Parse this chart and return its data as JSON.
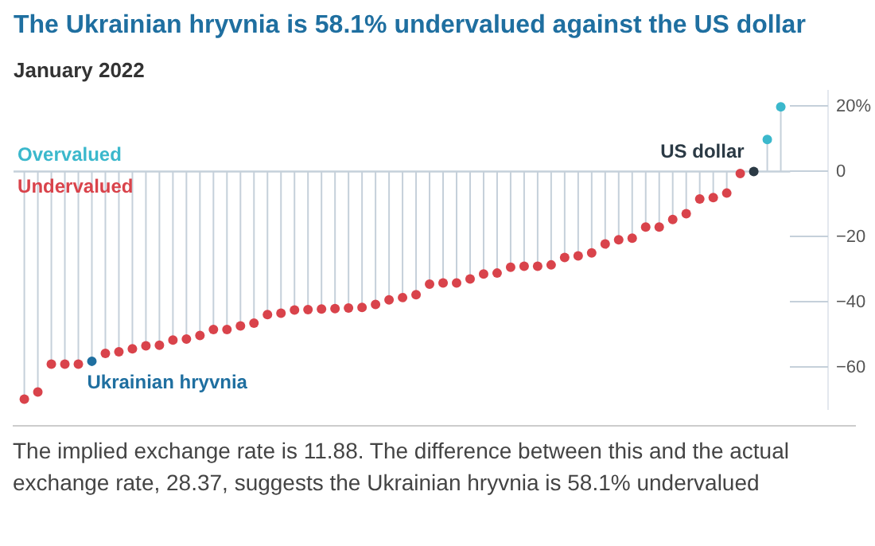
{
  "chart_data": {
    "type": "lollipop",
    "title": "The Ukrainian hryvnia is 58.1% undervalued against the US dollar",
    "subtitle": "January 2022",
    "categories": [
      null,
      null,
      null,
      null,
      null,
      null,
      null,
      null,
      null,
      null,
      null,
      null,
      null,
      null,
      null,
      null,
      null,
      null,
      null,
      null,
      null,
      null,
      null,
      null,
      null,
      null,
      null,
      null,
      null,
      null,
      null,
      null,
      null,
      null,
      null,
      null,
      null,
      null,
      null,
      null,
      null,
      null,
      null,
      null,
      null,
      null,
      null,
      null,
      null,
      null,
      null,
      null,
      null,
      null,
      null,
      null,
      null
    ],
    "values": [
      -69.7,
      -67.5,
      -59,
      -59,
      -59,
      -58.1,
      -55.7,
      -55.2,
      -54.3,
      -53.4,
      -53.2,
      -51.6,
      -51.3,
      -50.2,
      -48.4,
      -48.4,
      -47.3,
      -46.4,
      -43.8,
      -43.4,
      -42.4,
      -42.3,
      -42.1,
      -42,
      -41.8,
      -41.6,
      -40.7,
      -39.3,
      -38.6,
      -37.7,
      -34.5,
      -34.1,
      -34.1,
      -32.9,
      -31.4,
      -31.1,
      -29.3,
      -29,
      -29,
      -28.6,
      -26.3,
      -25.8,
      -24.9,
      -22.2,
      -20.9,
      -20.4,
      -17,
      -17,
      -14.7,
      -12.9,
      -8.4,
      -8,
      -6.6,
      -0.6,
      0,
      9.8,
      19.8
    ],
    "colors": [
      "#d9434b",
      "#d9434b",
      "#d9434b",
      "#d9434b",
      "#d9434b",
      "#1f6fa0",
      "#d9434b",
      "#d9434b",
      "#d9434b",
      "#d9434b",
      "#d9434b",
      "#d9434b",
      "#d9434b",
      "#d9434b",
      "#d9434b",
      "#d9434b",
      "#d9434b",
      "#d9434b",
      "#d9434b",
      "#d9434b",
      "#d9434b",
      "#d9434b",
      "#d9434b",
      "#d9434b",
      "#d9434b",
      "#d9434b",
      "#d9434b",
      "#d9434b",
      "#d9434b",
      "#d9434b",
      "#d9434b",
      "#d9434b",
      "#d9434b",
      "#d9434b",
      "#d9434b",
      "#d9434b",
      "#d9434b",
      "#d9434b",
      "#d9434b",
      "#d9434b",
      "#d9434b",
      "#d9434b",
      "#d9434b",
      "#d9434b",
      "#d9434b",
      "#d9434b",
      "#d9434b",
      "#d9434b",
      "#d9434b",
      "#d9434b",
      "#d9434b",
      "#d9434b",
      "#d9434b",
      "#d9434b",
      "#2b3a45",
      "#3bb8cc",
      "#3bb8cc"
    ],
    "ylim": [
      -73,
      25
    ],
    "yticks": [
      {
        "value": 20,
        "label": "20%"
      },
      0,
      -20,
      -40,
      -60
    ],
    "grid": false,
    "annotations": [
      "Overvalued",
      "Undervalued",
      "Ukrainian hryvnia",
      "US dollar",
      "The implied exchange rate is 11.88. The difference between this and the actual exchange rate, 28.37, suggests the Ukrainian hryvnia is 58.1% undervalued"
    ]
  }
}
